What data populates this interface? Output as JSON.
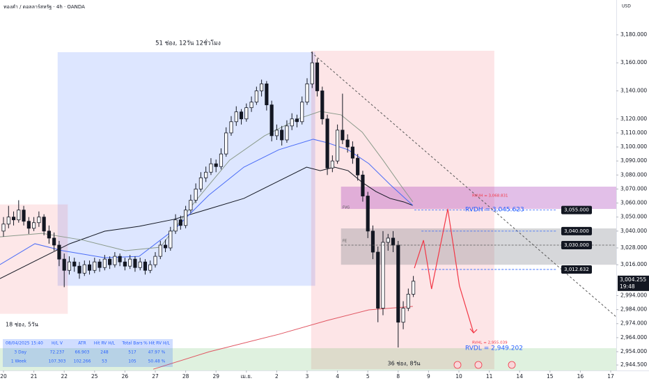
{
  "header": {
    "symbol": "ทองคำ / ดอลลาร์สหรัฐ · 4h · OANDA",
    "currency": "USD"
  },
  "chart_data": {
    "type": "candlestick",
    "xlim": [
      -0.69,
      121.1
    ],
    "ylim": [
      2940.6,
      3204.8
    ],
    "xticks": [
      {
        "value": 0,
        "label": "20"
      },
      {
        "value": 6,
        "label": "21"
      },
      {
        "value": 12,
        "label": "22"
      },
      {
        "value": 18,
        "label": "25"
      },
      {
        "value": 24,
        "label": "26"
      },
      {
        "value": 30,
        "label": "27"
      },
      {
        "value": 36,
        "label": "28"
      },
      {
        "value": 42,
        "label": "29"
      },
      {
        "value": 48,
        "label": "เม.ย."
      },
      {
        "value": 54,
        "label": "2"
      },
      {
        "value": 60,
        "label": "3"
      },
      {
        "value": 66,
        "label": "4"
      },
      {
        "value": 72,
        "label": "5"
      },
      {
        "value": 78,
        "label": "8"
      },
      {
        "value": 84,
        "label": "9"
      },
      {
        "value": 90,
        "label": "10"
      },
      {
        "value": 96,
        "label": "11"
      },
      {
        "value": 102,
        "label": "14"
      },
      {
        "value": 108,
        "label": "15"
      },
      {
        "value": 114,
        "label": "16"
      },
      {
        "value": 120,
        "label": "17"
      }
    ],
    "yticks": [
      {
        "value": 3180,
        "label": "3,180.000"
      },
      {
        "value": 3160,
        "label": "3,160.000"
      },
      {
        "value": 3140,
        "label": "3,140.000"
      },
      {
        "value": 3120,
        "label": "3,120.000"
      },
      {
        "value": 3110,
        "label": "3,110.000"
      },
      {
        "value": 3100,
        "label": "3,100.000"
      },
      {
        "value": 3090,
        "label": "3,090.000"
      },
      {
        "value": 3080,
        "label": "3,080.000"
      },
      {
        "value": 3070,
        "label": "3,070.000"
      },
      {
        "value": 3060,
        "label": "3,060.000"
      },
      {
        "value": 3050,
        "label": "3,050.000"
      },
      {
        "value": 3040,
        "label": "3,040.000"
      },
      {
        "value": 3028,
        "label": "3,028.000"
      },
      {
        "value": 3016,
        "label": "3,016.000"
      },
      {
        "value": 2994,
        "label": "2,994.000"
      },
      {
        "value": 2984,
        "label": "2,984.000"
      },
      {
        "value": 2974,
        "label": "2,974.000"
      },
      {
        "value": 2964,
        "label": "2,964.000"
      },
      {
        "value": 2954,
        "label": "2,954.000"
      },
      {
        "value": 2944.5,
        "label": "2,944.500"
      }
    ],
    "up_color": "#ffffff",
    "down_color": "#131722",
    "candles": [
      [
        3040,
        3050,
        3036,
        3045
      ],
      [
        3045,
        3058,
        3042,
        3050
      ],
      [
        3050,
        3054,
        3044,
        3048
      ],
      [
        3048,
        3062,
        3046,
        3055
      ],
      [
        3055,
        3058,
        3044,
        3047
      ],
      [
        3047,
        3050,
        3038,
        3042
      ],
      [
        3042,
        3050,
        3040,
        3046
      ],
      [
        3046,
        3054,
        3043,
        3050
      ],
      [
        3050,
        3052,
        3037,
        3040
      ],
      [
        3040,
        3044,
        3031,
        3035
      ],
      [
        3035,
        3039,
        3026,
        3030
      ],
      [
        3030,
        3033,
        3015,
        3020
      ],
      [
        3020,
        3024,
        3000,
        3012
      ],
      [
        3012,
        3022,
        3009,
        3018
      ],
      [
        3018,
        3021,
        3011,
        3015
      ],
      [
        3015,
        3018,
        3006,
        3010
      ],
      [
        3010,
        3019,
        3008,
        3016
      ],
      [
        3016,
        3019,
        3009,
        3012
      ],
      [
        3012,
        3021,
        3010,
        3018
      ],
      [
        3018,
        3020,
        3011,
        3014
      ],
      [
        3014,
        3023,
        3012,
        3020
      ],
      [
        3020,
        3022,
        3013,
        3016
      ],
      [
        3016,
        3025,
        3014,
        3022
      ],
      [
        3022,
        3024,
        3015,
        3018
      ],
      [
        3018,
        3021,
        3012,
        3015
      ],
      [
        3015,
        3023,
        3013,
        3020
      ],
      [
        3020,
        3022,
        3011,
        3014
      ],
      [
        3014,
        3021,
        3012,
        3018
      ],
      [
        3018,
        3020,
        3009,
        3012
      ],
      [
        3012,
        3019,
        3010,
        3016
      ],
      [
        3016,
        3025,
        3014,
        3022
      ],
      [
        3022,
        3033,
        3020,
        3030
      ],
      [
        3030,
        3034,
        3025,
        3028
      ],
      [
        3028,
        3043,
        3026,
        3040
      ],
      [
        3040,
        3052,
        3038,
        3048
      ],
      [
        3048,
        3051,
        3041,
        3044
      ],
      [
        3044,
        3058,
        3042,
        3055
      ],
      [
        3055,
        3066,
        3053,
        3062
      ],
      [
        3062,
        3074,
        3060,
        3070
      ],
      [
        3070,
        3082,
        3068,
        3078
      ],
      [
        3078,
        3086,
        3075,
        3082
      ],
      [
        3082,
        3092,
        3080,
        3088
      ],
      [
        3088,
        3091,
        3082,
        3086
      ],
      [
        3086,
        3099,
        3084,
        3095
      ],
      [
        3095,
        3114,
        3093,
        3110
      ],
      [
        3110,
        3122,
        3108,
        3118
      ],
      [
        3118,
        3129,
        3115,
        3125
      ],
      [
        3125,
        3127,
        3116,
        3120
      ],
      [
        3120,
        3131,
        3118,
        3128
      ],
      [
        3128,
        3136,
        3125,
        3132
      ],
      [
        3132,
        3143,
        3130,
        3140
      ],
      [
        3140,
        3148,
        3136,
        3145
      ],
      [
        3145,
        3147,
        3126,
        3130
      ],
      [
        3130,
        3133,
        3104,
        3108
      ],
      [
        3108,
        3116,
        3105,
        3112
      ],
      [
        3112,
        3115,
        3101,
        3105
      ],
      [
        3105,
        3119,
        3103,
        3115
      ],
      [
        3115,
        3124,
        3112,
        3120
      ],
      [
        3120,
        3123,
        3114,
        3118
      ],
      [
        3118,
        3136,
        3116,
        3132
      ],
      [
        3132,
        3149,
        3130,
        3145
      ],
      [
        3145,
        3168,
        3142,
        3160
      ],
      [
        3160,
        3163,
        3136,
        3140
      ],
      [
        3140,
        3143,
        3116,
        3120
      ],
      [
        3120,
        3123,
        3080,
        3085
      ],
      [
        3085,
        3094,
        3082,
        3090
      ],
      [
        3090,
        3116,
        3088,
        3112
      ],
      [
        3112,
        3138,
        3102,
        3105
      ],
      [
        3105,
        3109,
        3096,
        3100
      ],
      [
        3100,
        3104,
        3088,
        3092
      ],
      [
        3092,
        3095,
        3076,
        3080
      ],
      [
        3080,
        3083,
        3061,
        3065
      ],
      [
        3065,
        3068,
        3035,
        3040
      ],
      [
        3040,
        3044,
        3020,
        3025
      ],
      [
        3025,
        3029,
        2975,
        2985
      ],
      [
        2985,
        3040,
        2980,
        3032
      ],
      [
        3032,
        3038,
        3026,
        3035
      ],
      [
        3035,
        3040,
        3025,
        3030
      ],
      [
        3030,
        3033,
        2957,
        2975
      ],
      [
        2975,
        2990,
        2970,
        2985
      ],
      [
        2985,
        2999,
        2983,
        2995
      ],
      [
        2995,
        3008,
        2993,
        3004.255
      ]
    ],
    "indicators": [
      {
        "color": "#131722",
        "x": [
          -0.69,
          6.2,
          13.1,
          20,
          26.8,
          33.7,
          40.6,
          47.5,
          54.4,
          59.9,
          62.6,
          65.4,
          68.1,
          70.9,
          73.6,
          76.4,
          79.1,
          80.9
        ],
        "values": [
          3006.1,
          3018.6,
          3031,
          3039.9,
          3043.4,
          3048.4,
          3055.8,
          3063.3,
          3075.7,
          3085.6,
          3083.1,
          3085.6,
          3083.1,
          3074.7,
          3068.2,
          3063.3,
          3060.8,
          3058.3
        ]
      },
      {
        "color": "#4a6cf7",
        "x": [
          -0.69,
          6.2,
          11.7,
          20,
          26.8,
          33.7,
          40.6,
          47.5,
          54.4,
          61.2,
          64,
          68.1,
          72.2,
          76.4,
          80.9
        ],
        "values": [
          3016.1,
          3031,
          3026,
          3021,
          3022,
          3041,
          3065.7,
          3085.6,
          3098,
          3105.5,
          3103,
          3098,
          3088.1,
          3073.2,
          3058.3
        ]
      },
      {
        "color": "#8a9a8a",
        "x": [
          -0.69,
          7.6,
          15.8,
          24.1,
          31,
          37.8,
          44.7,
          51.6,
          58.5,
          62.6,
          66.7,
          70.9,
          75,
          78.4,
          80.9
        ],
        "values": [
          3035.9,
          3038.4,
          3033.5,
          3026,
          3028.5,
          3060.8,
          3090.6,
          3108,
          3120.4,
          3125.4,
          3122.9,
          3110.5,
          3090.6,
          3073.2,
          3060.8
        ]
      },
      {
        "color": "#e05561",
        "x": [
          29.6,
          40.6,
          54.4,
          64,
          72.2,
          80.9
        ],
        "values": [
          2941.5,
          2953.9,
          2966.4,
          2976.3,
          2983.8,
          2986.3
        ]
      }
    ],
    "zones": [
      {
        "color": "rgba(41,98,255,0.16)",
        "x": [
          10.7,
          61.6
        ],
        "y": [
          3001,
          3167.6
        ]
      },
      {
        "color": "rgba(242,54,69,0.12)",
        "x": [
          -0.69,
          12.7
        ],
        "y": [
          2981,
          3059
        ]
      },
      {
        "color": "rgba(242,54,69,0.13)",
        "x": [
          60.8,
          97
        ],
        "y": [
          2941.5,
          3168.6
        ]
      },
      {
        "color": "rgba(171,71,188,0.35)",
        "x": [
          66.7,
          121.1
        ],
        "y": [
          3055.8,
          3071.7
        ]
      },
      {
        "color": "rgba(120,123,134,0.30)",
        "x": [
          66.7,
          121.1
        ],
        "y": [
          3016,
          3041.9
        ]
      },
      {
        "color": "rgba(76,175,80,0.18)",
        "x": [
          -0.69,
          121.1
        ],
        "y": [
          2940.6,
          2956.5
        ]
      }
    ],
    "levels": [
      {
        "value": 3055,
        "label": "3,055.000",
        "x": [
          81.2,
          109.4
        ],
        "color": "#2962ff"
      },
      {
        "value": 3040,
        "label": "3,040.000",
        "x": [
          82.6,
          109.4
        ],
        "color": "#2962ff"
      },
      {
        "value": 3030,
        "label": "3,030.000",
        "x": [
          66.7,
          121.1
        ],
        "color": "#555555"
      },
      {
        "value": 3012.632,
        "label": "3,012.632",
        "x": [
          82.6,
          109.4
        ],
        "color": "#2962ff"
      }
    ],
    "trendline": {
      "color": "#555555",
      "x": [
        60.8,
        121.1
      ],
      "values": [
        3167.6,
        2978.8
      ]
    },
    "projection": {
      "color": "#f23645",
      "x": [
        81.2,
        83,
        84.6,
        87.8,
        90.1,
        92.9
      ],
      "values": [
        3013.6,
        3033.5,
        2998.7,
        3055.8,
        3001,
        2967.4
      ]
    },
    "last_price": {
      "value": 3004.255,
      "label": "3,004.255",
      "countdown": "19:48"
    },
    "annotations": [
      "51 ช่อง, 12วัน 12ชั่วโมง",
      "18 ช่อง, 5วัน",
      "36 ช่อง, 8วัน",
      "RVDH = 3,045.623",
      "RVDL = 2,949.202",
      "RVUH = 3,068.831",
      "RVHL = 2,955.039",
      "FVG",
      "FE"
    ],
    "table": [
      [
        "08/04/2025 15:40",
        "H/L V",
        "ATR",
        "Hit RV H/L",
        "Total Bars",
        "% Hit RV H/L"
      ],
      [
        "3 Day",
        "72.237",
        "66.903",
        "248",
        "517",
        "47.97 %"
      ],
      [
        "1 Week",
        "107.303",
        "102.266",
        "53",
        "105",
        "50.48 %"
      ]
    ]
  }
}
